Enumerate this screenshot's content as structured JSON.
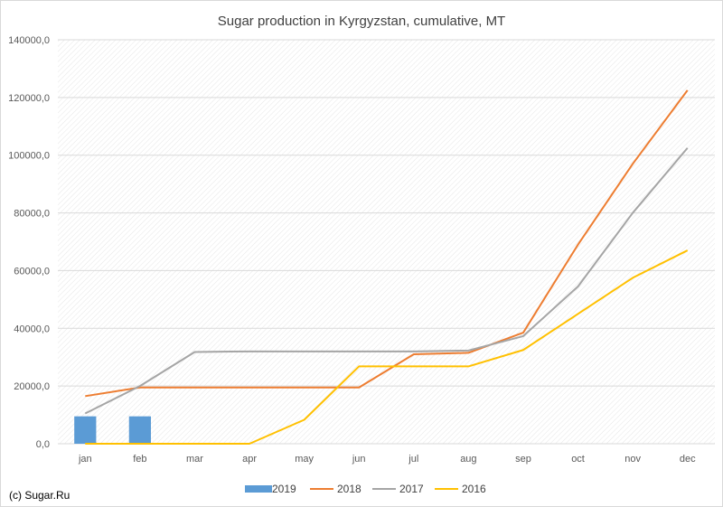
{
  "credit": "(c) Sugar.Ru",
  "chart_data": {
    "type": "bar+line",
    "title": "Sugar production in Kyrgyzstan, cumulative, MT",
    "xlabel": "",
    "ylabel": "",
    "categories": [
      "jan",
      "feb",
      "mar",
      "apr",
      "may",
      "jun",
      "jul",
      "aug",
      "sep",
      "oct",
      "nov",
      "dec"
    ],
    "ylim": [
      0,
      140000
    ],
    "yticks": [
      0,
      20000,
      40000,
      60000,
      80000,
      100000,
      120000,
      140000
    ],
    "ytick_labels": [
      "0,0",
      "20000,0",
      "40000,0",
      "60000,0",
      "80000,0",
      "100000,0",
      "120000,0",
      "140000,0"
    ],
    "grid": true,
    "legend_position": "bottom",
    "series": [
      {
        "name": "2019",
        "type": "bar",
        "color": "#5b9bd5",
        "values": [
          9500,
          9500,
          null,
          null,
          null,
          null,
          null,
          null,
          null,
          null,
          null,
          null
        ]
      },
      {
        "name": "2018",
        "type": "line",
        "color": "#ed7d31",
        "values": [
          16500,
          19500,
          19500,
          19500,
          19500,
          19500,
          31000,
          31500,
          38500,
          69000,
          97000,
          122500
        ]
      },
      {
        "name": "2017",
        "type": "line",
        "color": "#a5a5a5",
        "values": [
          10500,
          20000,
          31800,
          32000,
          32000,
          32000,
          32000,
          32300,
          37300,
          54500,
          80000,
          102500
        ]
      },
      {
        "name": "2016",
        "type": "line",
        "color": "#ffc000",
        "values": [
          0,
          0,
          0,
          0,
          8300,
          26800,
          26800,
          26800,
          32500,
          45000,
          57500,
          67000
        ]
      }
    ]
  }
}
